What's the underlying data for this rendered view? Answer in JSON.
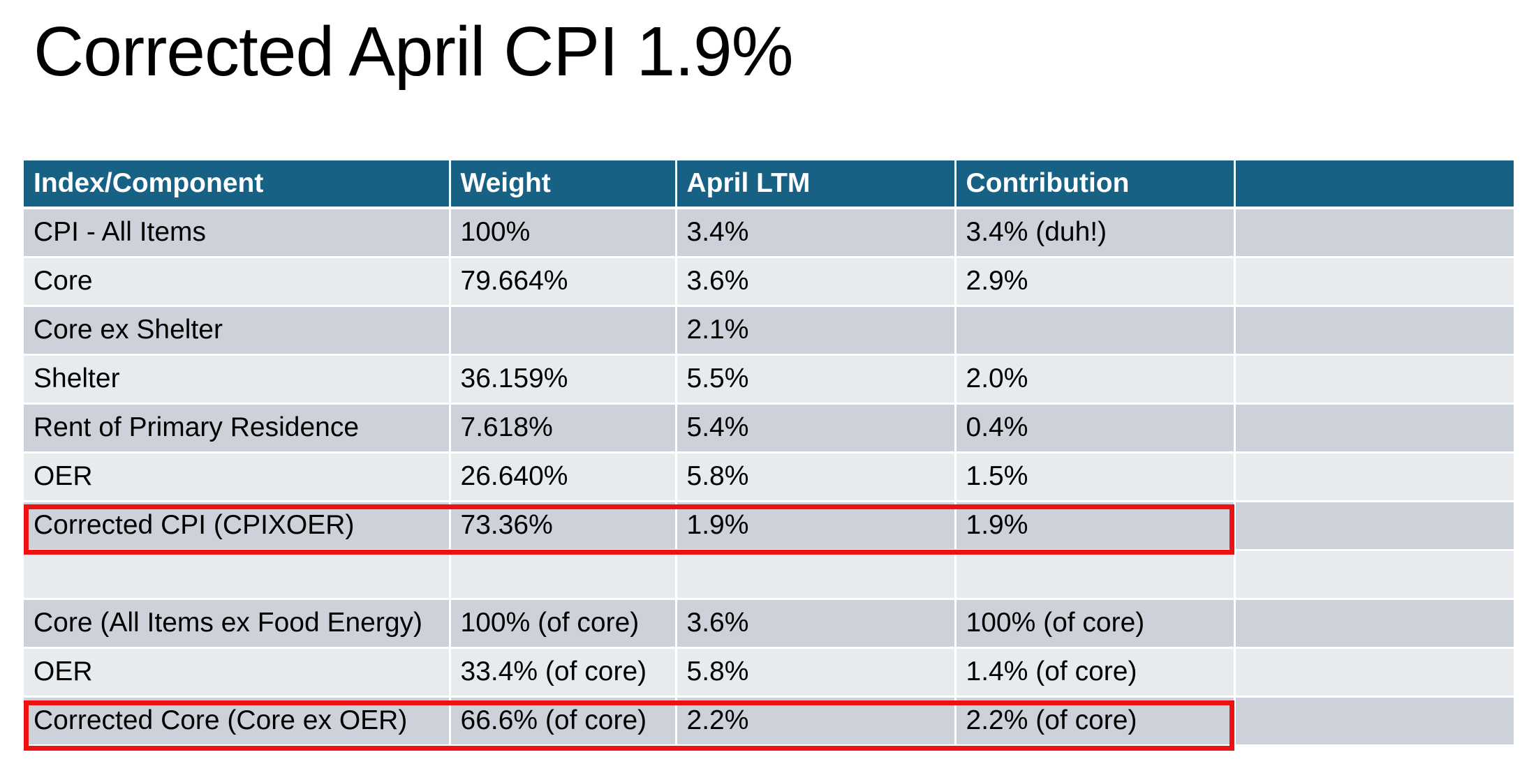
{
  "title": "Corrected April CPI 1.9%",
  "table": {
    "headers": [
      "Index/Component",
      "Weight",
      "April LTM",
      "Contribution",
      ""
    ],
    "rows": [
      [
        "CPI - All Items",
        "100%",
        "3.4%",
        "3.4% (duh!)",
        ""
      ],
      [
        "Core",
        "79.664%",
        "3.6%",
        "2.9%",
        ""
      ],
      [
        "Core ex Shelter",
        "",
        "2.1%",
        "",
        ""
      ],
      [
        "Shelter",
        "36.159%",
        "5.5%",
        "2.0%",
        ""
      ],
      [
        "Rent of Primary Residence",
        "7.618%",
        "5.4%",
        "0.4%",
        ""
      ],
      [
        "OER",
        "26.640%",
        "5.8%",
        "1.5%",
        ""
      ],
      [
        "Corrected CPI (CPIXOER)",
        "73.36%",
        "1.9%",
        "1.9%",
        ""
      ],
      [
        "",
        "",
        "",
        "",
        ""
      ],
      [
        "Core (All Items ex Food Energy)",
        "100% (of core)",
        "3.6%",
        "100% (of core)",
        ""
      ],
      [
        "OER",
        "33.4% (of core)",
        "5.8%",
        "1.4% (of core)",
        ""
      ],
      [
        "Corrected Core (Core ex OER)",
        "66.6% (of core)",
        "2.2%",
        "2.2% (of core)",
        ""
      ]
    ]
  },
  "colors": {
    "header_bg": "#176184",
    "row_dark": "#cdd1d9",
    "row_light": "#e8ebee",
    "highlight": "#ee1111"
  }
}
